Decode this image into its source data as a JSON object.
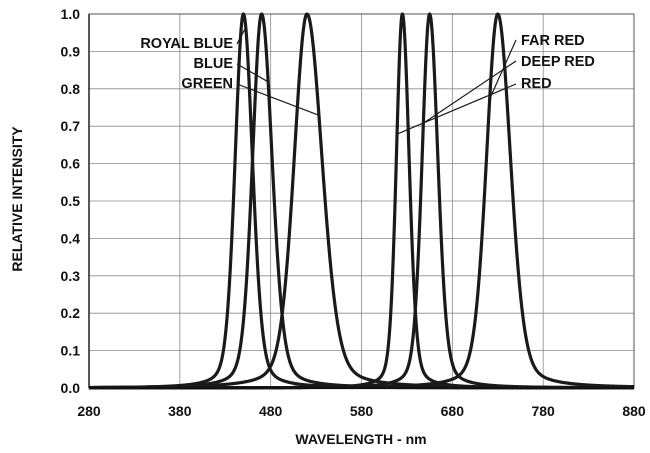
{
  "chart_data": {
    "type": "line",
    "title": "",
    "xlabel": "WAVELENGTH - nm",
    "ylabel": "RELATIVE INTENSITY",
    "xlim": [
      280,
      880
    ],
    "ylim": [
      0,
      1.0
    ],
    "x_ticks": [
      280,
      380,
      480,
      580,
      680,
      780,
      880
    ],
    "y_ticks": [
      0.0,
      0.1,
      0.2,
      0.3,
      0.4,
      0.5,
      0.6,
      0.7,
      0.8,
      0.9,
      1.0
    ],
    "y_tick_labels": [
      "0.0",
      "0.1",
      "0.2",
      "0.3",
      "0.4",
      "0.5",
      "0.6",
      "0.7",
      "0.8",
      "0.9",
      "1.0"
    ],
    "grid": true,
    "legend": "none (curves labeled directly)",
    "series": [
      {
        "name": "ROYAL BLUE",
        "peak": 450,
        "half_width_left": 11,
        "half_width_right": 12
      },
      {
        "name": "BLUE",
        "peak": 470,
        "half_width_left": 12,
        "half_width_right": 14
      },
      {
        "name": "GREEN",
        "peak": 520,
        "half_width_left": 17,
        "half_width_right": 20
      },
      {
        "name": "RED",
        "peak": 625,
        "half_width_left": 8,
        "half_width_right": 9
      },
      {
        "name": "DEEP RED",
        "peak": 655,
        "half_width_left": 10,
        "half_width_right": 11
      },
      {
        "name": "FAR RED",
        "peak": 730,
        "half_width_left": 15,
        "half_width_right": 17
      }
    ]
  }
}
